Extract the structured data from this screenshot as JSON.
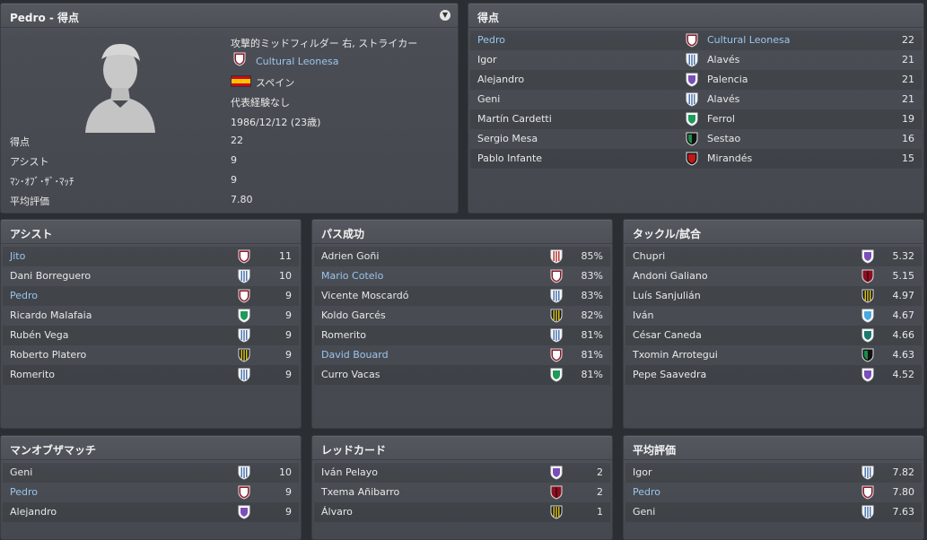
{
  "profile": {
    "title": "Pedro - 得点",
    "position": "攻撃的ミッドフィルダー 右, ストライカー",
    "club": "Cultural Leonesa",
    "nation": "スペイン",
    "caps": "代表経験なし",
    "dob": "1986/12/12 (23歳)",
    "stats": [
      {
        "label": "得点",
        "value": "22"
      },
      {
        "label": "アシスト",
        "value": "9"
      },
      {
        "label": "ﾏﾝ･ｵﾌﾞ･ｻﾞ･ﾏｯﾁ",
        "value": "9"
      },
      {
        "label": "平均評価",
        "value": "7.80"
      }
    ]
  },
  "scorers": {
    "title": "得点",
    "rows": [
      {
        "name": "Pedro",
        "club": "Cultural Leonesa",
        "value": "22",
        "link": true,
        "clublink": true,
        "shield": "crimson-white"
      },
      {
        "name": "Igor",
        "club": "Alavés",
        "value": "21",
        "shield": "stripes-blue"
      },
      {
        "name": "Alejandro",
        "club": "Palencia",
        "value": "21",
        "shield": "purple"
      },
      {
        "name": "Geni",
        "club": "Alavés",
        "value": "21",
        "shield": "stripes-blue"
      },
      {
        "name": "Martín Cardetti",
        "club": "Ferrol",
        "value": "19",
        "shield": "green"
      },
      {
        "name": "Sergio Mesa",
        "club": "Sestao",
        "value": "16",
        "shield": "green-black"
      },
      {
        "name": "Pablo Infante",
        "club": "Mirandés",
        "value": "15",
        "shield": "red-black"
      }
    ]
  },
  "assists": {
    "title": "アシスト",
    "rows": [
      {
        "name": "Jito",
        "value": "11",
        "link": true,
        "shield": "crimson-white"
      },
      {
        "name": "Dani Borreguero",
        "value": "10",
        "shield": "stripes-blue"
      },
      {
        "name": "Pedro",
        "value": "9",
        "link": true,
        "shield": "crimson-white"
      },
      {
        "name": "Ricardo Malafaia",
        "value": "9",
        "shield": "green"
      },
      {
        "name": "Rubén Vega",
        "value": "9",
        "shield": "stripes-blue"
      },
      {
        "name": "Roberto Platero",
        "value": "9",
        "shield": "stripes-yellow"
      },
      {
        "name": "Romerito",
        "value": "9",
        "shield": "stripes-blue"
      }
    ]
  },
  "passes": {
    "title": "パス成功",
    "rows": [
      {
        "name": "Adrien Goñi",
        "value": "85%",
        "shield": "stripes-red"
      },
      {
        "name": "Mario Cotelo",
        "value": "83%",
        "link": true,
        "shield": "crimson-white"
      },
      {
        "name": "Vicente Moscardó",
        "value": "83%",
        "shield": "stripes-blue"
      },
      {
        "name": "Koldo Garcés",
        "value": "82%",
        "shield": "stripes-yellow"
      },
      {
        "name": "Romerito",
        "value": "81%",
        "shield": "stripes-blue"
      },
      {
        "name": "David Bouard",
        "value": "81%",
        "link": true,
        "shield": "crimson-white"
      },
      {
        "name": "Curro Vacas",
        "value": "81%",
        "shield": "green"
      }
    ]
  },
  "tackles": {
    "title": "タックル/試合",
    "rows": [
      {
        "name": "Chupri",
        "value": "5.32",
        "shield": "purple"
      },
      {
        "name": "Andoni Galiano",
        "value": "5.15",
        "shield": "red-dark"
      },
      {
        "name": "Luís Sanjulián",
        "value": "4.97",
        "shield": "stripes-yellow"
      },
      {
        "name": "Iván",
        "value": "4.67",
        "shield": "skyblue"
      },
      {
        "name": "César Caneda",
        "value": "4.66",
        "shield": "teal"
      },
      {
        "name": "Txomin Arrotegui",
        "value": "4.63",
        "shield": "green-black"
      },
      {
        "name": "Pepe Saavedra",
        "value": "4.52",
        "shield": "purple"
      }
    ]
  },
  "motm": {
    "title": "マンオブザマッチ",
    "rows": [
      {
        "name": "Geni",
        "value": "10",
        "shield": "stripes-blue"
      },
      {
        "name": "Pedro",
        "value": "9",
        "link": true,
        "shield": "crimson-white"
      },
      {
        "name": "Alejandro",
        "value": "9",
        "shield": "purple"
      }
    ]
  },
  "redcards": {
    "title": "レッドカード",
    "rows": [
      {
        "name": "Iván Pelayo",
        "value": "2",
        "shield": "purple"
      },
      {
        "name": "Txema Añibarro",
        "value": "2",
        "shield": "red-dark"
      },
      {
        "name": "Álvaro",
        "value": "1",
        "shield": "stripes-yellow"
      }
    ]
  },
  "avgrating": {
    "title": "平均評価",
    "rows": [
      {
        "name": "Igor",
        "value": "7.82",
        "shield": "stripes-blue"
      },
      {
        "name": "Pedro",
        "value": "7.80",
        "link": true,
        "shield": "crimson-white"
      },
      {
        "name": "Geni",
        "value": "7.63",
        "shield": "stripes-blue"
      }
    ]
  }
}
